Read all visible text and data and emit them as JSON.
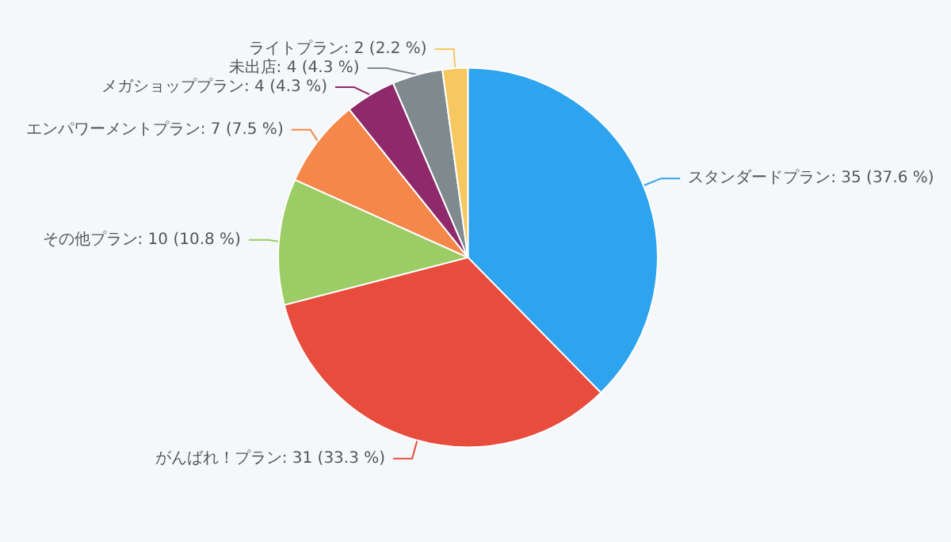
{
  "chart_data": {
    "type": "pie",
    "categories": [
      "スタンダードプラン",
      "がんばれ！プラン",
      "その他プラン",
      "エンパワーメントプラン",
      "メガショッププラン",
      "未出店",
      "ライトプラン"
    ],
    "values": [
      35,
      31,
      10,
      7,
      4,
      4,
      2
    ],
    "value_labels": [
      "35 (37.6 %)",
      "31 (33.3 %)",
      "10 (10.8 %)",
      "7 (7.5 %)",
      "4 (4.3 %)",
      "4 (4.3 %)",
      "2 (2.2 %)"
    ],
    "colors": [
      "#2ea3ee",
      "#e84c3d",
      "#9ccc65",
      "#f6874a",
      "#8e2a6b",
      "#7f8a8e",
      "#f6c85f"
    ]
  }
}
